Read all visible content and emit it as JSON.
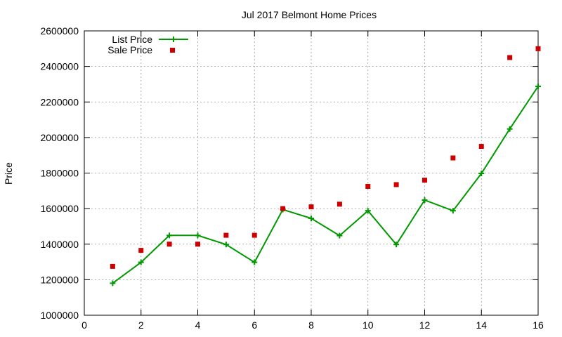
{
  "chart_data": {
    "type": "line",
    "title": "Jul 2017 Belmont Home Prices",
    "xlabel": "",
    "ylabel": "Price",
    "xlim": [
      0,
      16
    ],
    "ylim": [
      1000000,
      2600000
    ],
    "xticks": [
      0,
      2,
      4,
      6,
      8,
      10,
      12,
      14,
      16
    ],
    "yticks": [
      1000000,
      1200000,
      1400000,
      1600000,
      1800000,
      2000000,
      2200000,
      2400000,
      2600000
    ],
    "grid": true,
    "legend_position": "top-left",
    "series": [
      {
        "name": "List Price",
        "style": "line+cross",
        "color": "#009900",
        "x": [
          1,
          2,
          3,
          4,
          5,
          6,
          7,
          8,
          9,
          10,
          11,
          12,
          13,
          14,
          15,
          16
        ],
        "y": [
          1180000,
          1298000,
          1449000,
          1449000,
          1398000,
          1298000,
          1595000,
          1545000,
          1448000,
          1588000,
          1398000,
          1648000,
          1588000,
          1798000,
          2048000,
          2288000
        ]
      },
      {
        "name": "Sale Price",
        "style": "square-points",
        "color": "#cc0000",
        "x": [
          1,
          2,
          3,
          4,
          5,
          6,
          7,
          8,
          9,
          10,
          11,
          12,
          13,
          14,
          15,
          16
        ],
        "y": [
          1275000,
          1365000,
          1400000,
          1400000,
          1450000,
          1450000,
          1600000,
          1610000,
          1625000,
          1725000,
          1735000,
          1760000,
          1885000,
          1950000,
          2450000,
          2500000
        ]
      }
    ]
  }
}
